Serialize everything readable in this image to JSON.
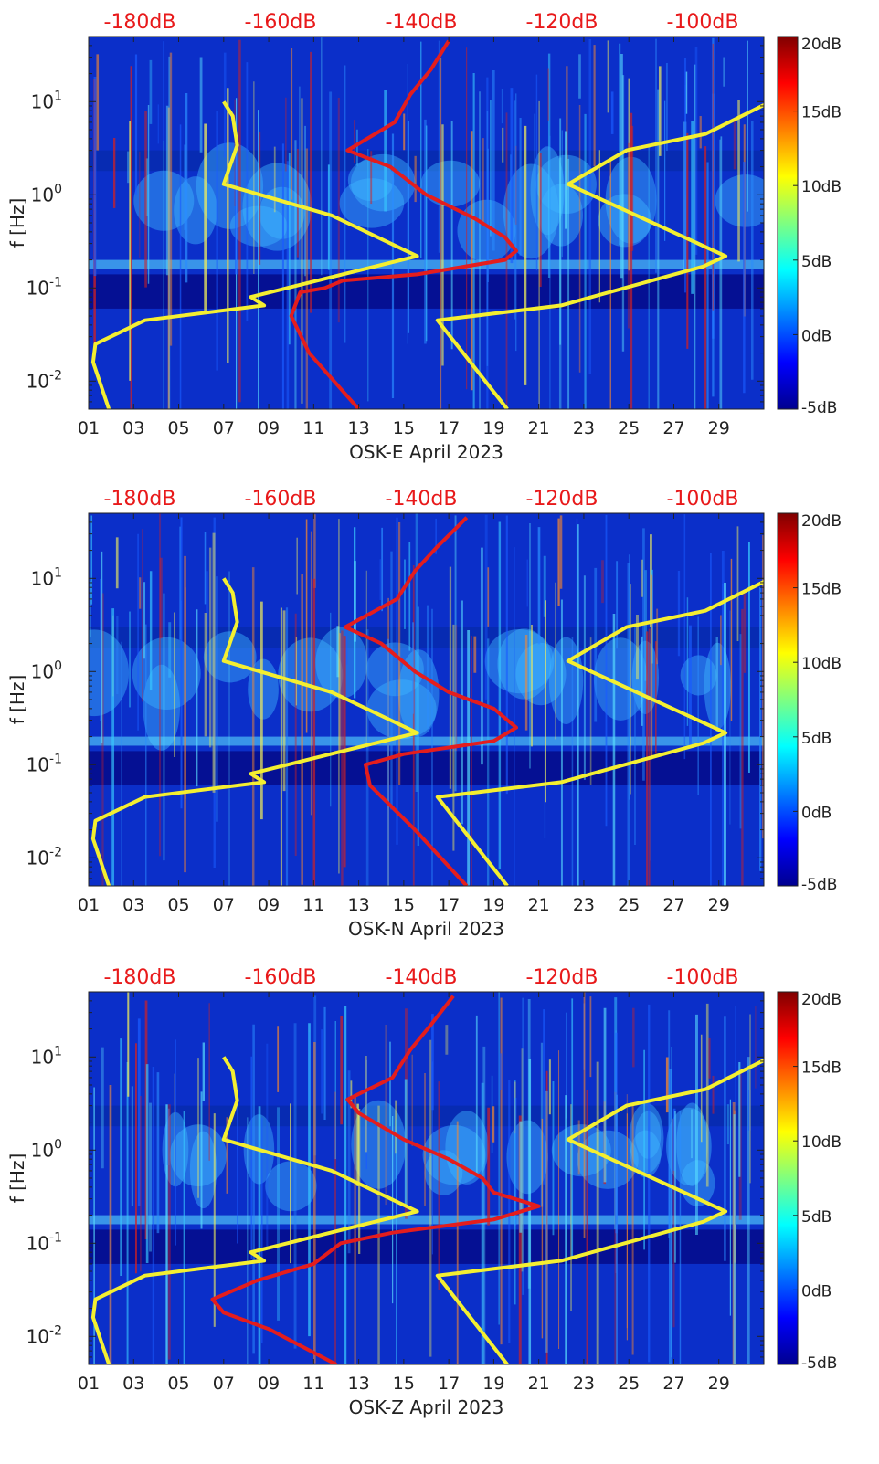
{
  "colorbar": {
    "ticks": [
      "20dB",
      "15dB",
      "10dB",
      "5dB",
      "0dB",
      "-5dB"
    ]
  },
  "top_axis": {
    "ticks": [
      "-180dB",
      "-160dB",
      "-140dB",
      "-120dB",
      "-100dB"
    ],
    "color": "#e8191a"
  },
  "colors": {
    "noise_model": "#f4ef31",
    "median_psd": "#e41d1d",
    "background": "#0b2fc9"
  },
  "chart_data": [
    {
      "type": "heatmap",
      "title": "",
      "xlabel": "OSK-E April 2023",
      "ylabel": "f [Hz]",
      "x_ticks": [
        "01",
        "03",
        "05",
        "07",
        "09",
        "11",
        "13",
        "15",
        "17",
        "19",
        "21",
        "23",
        "25",
        "27",
        "29"
      ],
      "y_ticks": [
        "10^-2",
        "10^-1",
        "10^0",
        "10^1"
      ],
      "y_scale": "log",
      "ylim_hz": [
        0.005,
        50
      ],
      "xlim_day": [
        1,
        31
      ],
      "color_range_db": [
        -5,
        20
      ],
      "series": [
        {
          "color": "yellow",
          "points_day_hz": [
            [
              1.9,
              0.005
            ],
            [
              1.2,
              0.016
            ],
            [
              1.3,
              0.025
            ],
            [
              3.5,
              0.045
            ],
            [
              8.8,
              0.065
            ],
            [
              8.2,
              0.08
            ],
            [
              15.6,
              0.22
            ],
            [
              11.8,
              0.6
            ],
            [
              7.0,
              1.3
            ],
            [
              7.6,
              3.4
            ],
            [
              7.4,
              7.0
            ],
            [
              7.0,
              10.0
            ]
          ]
        },
        {
          "color": "yellow",
          "points_day_hz": [
            [
              19.6,
              0.005
            ],
            [
              16.5,
              0.045
            ],
            [
              22.0,
              0.065
            ],
            [
              28.3,
              0.17
            ],
            [
              29.3,
              0.22
            ],
            [
              22.3,
              1.3
            ],
            [
              24.9,
              3.0
            ],
            [
              28.4,
              4.5
            ],
            [
              31.3,
              10.0
            ]
          ]
        },
        {
          "color": "red",
          "points_day_hz": [
            [
              13.0,
              0.005
            ],
            [
              10.8,
              0.02
            ],
            [
              10.0,
              0.05
            ],
            [
              10.4,
              0.09
            ],
            [
              11.5,
              0.1
            ],
            [
              12.3,
              0.12
            ],
            [
              15.6,
              0.14
            ],
            [
              19.5,
              0.2
            ],
            [
              20.0,
              0.25
            ],
            [
              19.5,
              0.35
            ],
            [
              18.2,
              0.55
            ],
            [
              16.0,
              1.0
            ],
            [
              14.4,
              2.0
            ],
            [
              12.5,
              3.0
            ],
            [
              14.6,
              6.0
            ],
            [
              15.3,
              12
            ],
            [
              16.2,
              22
            ],
            [
              17.0,
              45
            ]
          ]
        }
      ]
    },
    {
      "type": "heatmap",
      "title": "",
      "xlabel": "OSK-N April 2023",
      "ylabel": "f [Hz]",
      "x_ticks": [
        "01",
        "03",
        "05",
        "07",
        "09",
        "11",
        "13",
        "15",
        "17",
        "19",
        "21",
        "23",
        "25",
        "27",
        "29"
      ],
      "y_ticks": [
        "10^-2",
        "10^-1",
        "10^0",
        "10^1"
      ],
      "y_scale": "log",
      "ylim_hz": [
        0.005,
        50
      ],
      "xlim_day": [
        1,
        31
      ],
      "color_range_db": [
        -5,
        20
      ],
      "series": [
        {
          "color": "yellow",
          "points_day_hz": [
            [
              1.9,
              0.005
            ],
            [
              1.2,
              0.016
            ],
            [
              1.3,
              0.025
            ],
            [
              3.5,
              0.045
            ],
            [
              8.8,
              0.065
            ],
            [
              8.2,
              0.08
            ],
            [
              15.6,
              0.22
            ],
            [
              11.8,
              0.6
            ],
            [
              7.0,
              1.3
            ],
            [
              7.6,
              3.4
            ],
            [
              7.4,
              7.0
            ],
            [
              7.0,
              10.0
            ]
          ]
        },
        {
          "color": "yellow",
          "points_day_hz": [
            [
              19.6,
              0.005
            ],
            [
              16.5,
              0.045
            ],
            [
              22.0,
              0.065
            ],
            [
              28.3,
              0.17
            ],
            [
              29.3,
              0.22
            ],
            [
              22.3,
              1.3
            ],
            [
              24.9,
              3.0
            ],
            [
              28.4,
              4.5
            ],
            [
              31.3,
              10.0
            ]
          ]
        },
        {
          "color": "red",
          "points_day_hz": [
            [
              17.8,
              0.005
            ],
            [
              15.5,
              0.02
            ],
            [
              13.5,
              0.06
            ],
            [
              13.3,
              0.1
            ],
            [
              15.0,
              0.13
            ],
            [
              19.0,
              0.18
            ],
            [
              20.0,
              0.25
            ],
            [
              19.0,
              0.4
            ],
            [
              17.0,
              0.6
            ],
            [
              15.5,
              1.0
            ],
            [
              14.0,
              2.0
            ],
            [
              12.4,
              3.0
            ],
            [
              14.7,
              6.0
            ],
            [
              15.5,
              12
            ],
            [
              16.5,
              22
            ],
            [
              17.8,
              45
            ]
          ]
        }
      ]
    },
    {
      "type": "heatmap",
      "title": "",
      "xlabel": "OSK-Z April 2023",
      "ylabel": "f [Hz]",
      "x_ticks": [
        "01",
        "03",
        "05",
        "07",
        "09",
        "11",
        "13",
        "15",
        "17",
        "19",
        "21",
        "23",
        "25",
        "27",
        "29"
      ],
      "y_ticks": [
        "10^-2",
        "10^-1",
        "10^0",
        "10^1"
      ],
      "y_scale": "log",
      "ylim_hz": [
        0.005,
        50
      ],
      "xlim_day": [
        1,
        31
      ],
      "color_range_db": [
        -5,
        20
      ],
      "series": [
        {
          "color": "yellow",
          "points_day_hz": [
            [
              1.9,
              0.005
            ],
            [
              1.2,
              0.016
            ],
            [
              1.3,
              0.025
            ],
            [
              3.5,
              0.045
            ],
            [
              8.8,
              0.065
            ],
            [
              8.2,
              0.08
            ],
            [
              15.6,
              0.22
            ],
            [
              11.8,
              0.6
            ],
            [
              7.0,
              1.3
            ],
            [
              7.6,
              3.4
            ],
            [
              7.4,
              7.0
            ],
            [
              7.0,
              10.0
            ]
          ]
        },
        {
          "color": "yellow",
          "points_day_hz": [
            [
              19.6,
              0.005
            ],
            [
              16.5,
              0.045
            ],
            [
              22.0,
              0.065
            ],
            [
              28.3,
              0.17
            ],
            [
              29.3,
              0.22
            ],
            [
              22.3,
              1.3
            ],
            [
              24.9,
              3.0
            ],
            [
              28.4,
              4.5
            ],
            [
              31.3,
              10.0
            ]
          ]
        },
        {
          "color": "red",
          "points_day_hz": [
            [
              12.0,
              0.005
            ],
            [
              9.0,
              0.012
            ],
            [
              7.0,
              0.018
            ],
            [
              6.5,
              0.025
            ],
            [
              8.5,
              0.04
            ],
            [
              11.0,
              0.06
            ],
            [
              12.2,
              0.1
            ],
            [
              14.5,
              0.13
            ],
            [
              19.0,
              0.18
            ],
            [
              21.0,
              0.25
            ],
            [
              19.0,
              0.35
            ],
            [
              18.5,
              0.5
            ],
            [
              17.0,
              0.8
            ],
            [
              15.0,
              1.3
            ],
            [
              13.0,
              2.5
            ],
            [
              12.5,
              3.5
            ],
            [
              14.5,
              6.0
            ],
            [
              15.3,
              12
            ],
            [
              16.2,
              22
            ],
            [
              17.2,
              45
            ]
          ]
        }
      ]
    }
  ]
}
